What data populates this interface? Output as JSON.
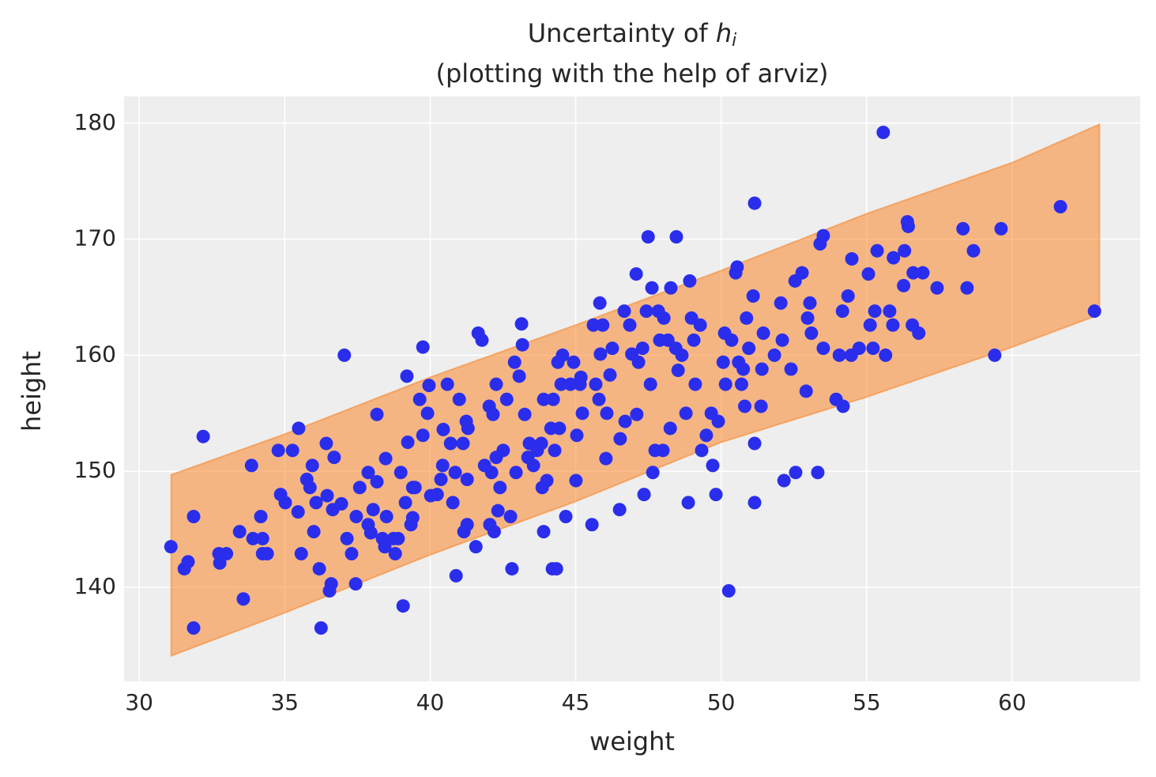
{
  "chart_data": {
    "type": "scatter",
    "title": "Uncertainty of",
    "title_symbol": "h",
    "title_subscript": "i",
    "subtitle": "(plotting with the help of arviz)",
    "x_label": "weight",
    "y_label": "height",
    "xlim": [
      29.48,
      64.4
    ],
    "ylim": [
      131.9,
      182.3
    ],
    "xticks": [
      30,
      35,
      40,
      45,
      50,
      55,
      60
    ],
    "yticks": [
      140,
      150,
      160,
      170,
      180
    ],
    "grid": true,
    "background": "#eeeeee",
    "grid_color": "#ffffff",
    "color": "#2a2eec",
    "band": {
      "color": "#fa7c17",
      "alpha": 0.5,
      "x": [
        31.1,
        35,
        40,
        45,
        50,
        55,
        60,
        63
      ],
      "lower": [
        134.1,
        137.8,
        142.8,
        147.4,
        152.5,
        156.4,
        160.7,
        163.5
      ],
      "upper": [
        149.7,
        153.2,
        158.1,
        162.6,
        167.3,
        172.2,
        176.6,
        179.9
      ]
    },
    "x": [
      31.09,
      31.55,
      31.68,
      31.87,
      31.87,
      32.2,
      32.74,
      32.77,
      33.0,
      33.45,
      33.58,
      33.86,
      33.91,
      34.18,
      34.24,
      34.24,
      34.4,
      34.78,
      34.86,
      35.02,
      35.27,
      35.48,
      35.46,
      35.57,
      35.76,
      35.87,
      35.95,
      36.0,
      36.08,
      36.19,
      36.25,
      36.43,
      36.46,
      36.54,
      36.6,
      36.65,
      36.7,
      36.95,
      37.05,
      37.14,
      37.3,
      37.44,
      37.46,
      37.58,
      37.87,
      37.96,
      37.87,
      38.04,
      38.17,
      38.17,
      38.36,
      38.44,
      38.47,
      38.5,
      38.74,
      38.8,
      38.9,
      38.99,
      39.07,
      39.15,
      39.2,
      39.23,
      39.34,
      39.4,
      39.4,
      39.48,
      39.64,
      39.75,
      39.75,
      39.91,
      39.96,
      40.02,
      40.24,
      40.37,
      40.43,
      40.45,
      40.59,
      40.7,
      40.78,
      40.86,
      40.89,
      41.0,
      41.13,
      41.16,
      41.24,
      41.27,
      41.27,
      41.3,
      41.57,
      41.65,
      41.78,
      41.87,
      42.03,
      42.05,
      42.11,
      42.16,
      42.2,
      42.27,
      42.27,
      42.33,
      42.4,
      42.51,
      42.63,
      42.76,
      42.81,
      42.9,
      42.95,
      43.06,
      43.14,
      43.17,
      43.25,
      43.36,
      43.41,
      43.55,
      43.68,
      43.82,
      43.85,
      43.9,
      43.9,
      44.01,
      44.15,
      44.2,
      44.23,
      44.28,
      44.34,
      44.39,
      44.44,
      44.5,
      44.55,
      44.66,
      44.82,
      44.93,
      45.01,
      45.04,
      45.15,
      45.18,
      45.23,
      45.56,
      45.61,
      45.69,
      45.8,
      45.83,
      45.85,
      45.93,
      46.04,
      46.07,
      46.18,
      46.26,
      46.51,
      46.53,
      46.67,
      46.7,
      46.86,
      46.93,
      47.08,
      47.1,
      47.16,
      47.3,
      47.35,
      47.43,
      47.49,
      47.57,
      47.62,
      47.65,
      47.73,
      47.84,
      47.89,
      48.0,
      48.03,
      48.17,
      48.25,
      48.27,
      48.44,
      48.46,
      48.52,
      48.65,
      48.79,
      48.87,
      48.92,
      48.98,
      49.06,
      49.11,
      49.28,
      49.33,
      49.49,
      49.66,
      49.71,
      49.82,
      49.9,
      50.07,
      50.12,
      50.15,
      50.26,
      50.36,
      50.5,
      50.55,
      50.6,
      50.7,
      50.76,
      50.81,
      50.87,
      50.95,
      51.1,
      51.15,
      51.15,
      51.15,
      51.37,
      51.4,
      51.45,
      51.83,
      52.05,
      52.1,
      52.16,
      52.4,
      52.54,
      52.56,
      52.78,
      52.92,
      52.97,
      53.05,
      53.1,
      53.32,
      53.4,
      53.51,
      53.51,
      53.95,
      54.06,
      54.17,
      54.19,
      54.36,
      54.47,
      54.49,
      54.74,
      55.06,
      55.12,
      55.22,
      55.28,
      55.36,
      55.57,
      55.65,
      55.79,
      55.9,
      55.92,
      56.27,
      56.3,
      56.4,
      56.43,
      56.57,
      56.6,
      56.79,
      56.93,
      57.42,
      58.31,
      58.45,
      58.67,
      59.4,
      59.62,
      61.66,
      62.83
    ],
    "values": [
      143.5,
      141.6,
      142.2,
      146.1,
      136.5,
      153.0,
      142.9,
      142.1,
      142.9,
      144.8,
      139.0,
      150.5,
      144.2,
      146.1,
      144.2,
      142.9,
      142.9,
      151.8,
      148.0,
      147.3,
      151.8,
      153.7,
      146.5,
      142.9,
      149.3,
      148.6,
      150.5,
      144.8,
      147.3,
      141.6,
      136.5,
      152.4,
      147.9,
      139.7,
      140.3,
      146.7,
      151.2,
      147.2,
      160.0,
      144.2,
      142.9,
      140.3,
      146.1,
      148.6,
      145.4,
      144.7,
      149.9,
      146.7,
      154.9,
      149.1,
      144.2,
      143.5,
      151.1,
      146.1,
      144.2,
      142.9,
      144.2,
      149.9,
      138.4,
      147.3,
      158.2,
      152.5,
      145.4,
      146.0,
      148.6,
      148.6,
      156.2,
      160.7,
      153.1,
      155.0,
      157.4,
      147.9,
      148.0,
      149.3,
      150.5,
      153.6,
      157.5,
      152.4,
      147.3,
      149.9,
      141.0,
      156.2,
      152.4,
      144.8,
      154.3,
      149.3,
      145.4,
      153.7,
      143.5,
      161.9,
      161.3,
      150.5,
      155.6,
      145.4,
      149.9,
      154.9,
      144.8,
      157.5,
      151.2,
      146.6,
      148.6,
      151.8,
      156.2,
      146.1,
      141.6,
      159.4,
      149.9,
      158.2,
      162.7,
      160.9,
      154.9,
      151.2,
      152.4,
      150.5,
      151.8,
      152.4,
      148.6,
      156.2,
      144.8,
      149.2,
      153.7,
      141.6,
      156.2,
      151.8,
      141.6,
      159.4,
      153.7,
      157.5,
      160.0,
      146.1,
      157.5,
      159.4,
      149.2,
      153.1,
      157.5,
      158.1,
      155.0,
      145.4,
      162.6,
      157.5,
      156.2,
      164.5,
      160.1,
      162.6,
      151.1,
      155.0,
      158.3,
      160.6,
      146.7,
      152.8,
      163.8,
      154.3,
      162.6,
      160.1,
      167.0,
      154.9,
      159.4,
      160.6,
      148.0,
      163.8,
      170.2,
      157.5,
      165.8,
      149.9,
      151.8,
      163.8,
      161.3,
      151.8,
      163.2,
      161.3,
      153.7,
      165.8,
      160.6,
      170.2,
      158.7,
      160.0,
      155.0,
      147.3,
      166.4,
      163.2,
      161.3,
      157.5,
      162.6,
      151.8,
      153.1,
      155.0,
      150.5,
      148.0,
      154.3,
      159.4,
      161.9,
      157.5,
      139.7,
      161.3,
      167.1,
      167.6,
      159.4,
      157.5,
      158.8,
      155.6,
      163.2,
      160.6,
      165.1,
      147.3,
      152.4,
      173.1,
      155.6,
      158.8,
      161.9,
      160.0,
      164.5,
      161.3,
      149.2,
      158.8,
      166.4,
      149.9,
      167.1,
      156.9,
      163.2,
      164.5,
      161.9,
      149.9,
      169.6,
      170.3,
      160.6,
      156.2,
      160.0,
      163.8,
      155.6,
      165.1,
      160.0,
      168.3,
      160.6,
      167.0,
      162.6,
      160.6,
      163.8,
      169.0,
      179.2,
      160.0,
      163.8,
      162.6,
      168.4,
      166.0,
      169.0,
      171.5,
      171.1,
      162.6,
      167.1,
      161.9,
      167.1,
      165.8,
      170.9,
      165.8,
      169.0,
      160.0,
      170.9,
      172.8,
      163.8
    ]
  }
}
